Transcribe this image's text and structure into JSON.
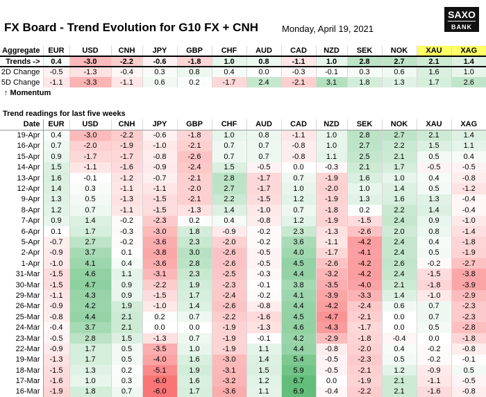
{
  "header": {
    "title": "FX Board - Trend Evolution for G10 FX + CNH",
    "date": "Monday, April 19, 2021",
    "logo": [
      "SAXO",
      "BANK"
    ]
  },
  "summary": {
    "corner": "Aggregate",
    "columns": [
      "EUR",
      "USD",
      "CNH",
      "JPY",
      "GBP",
      "CHF",
      "AUD",
      "CAD",
      "NZD",
      "SEK",
      "NOK",
      "XAU",
      "XAG"
    ],
    "rows": [
      {
        "label": "Trends ->",
        "cells": [
          "0.4",
          "-3.0",
          "-2.2",
          "-0.6",
          "-1.8",
          "1.0",
          "0.8",
          "-1.1",
          "1.0",
          "2.8",
          "2.7",
          "2.1",
          "1.4"
        ]
      },
      {
        "label": "2D Change",
        "cells": [
          "-0.5",
          "-1.3",
          "-0.4",
          "0.3",
          "0.8",
          "0.4",
          "0.0",
          "-0.3",
          "-0.1",
          "0.3",
          "0.6",
          "1.6",
          "1.0"
        ]
      },
      {
        "label": "5D Change",
        "cells": [
          "-1.1",
          "-3.3",
          "-1.1",
          "0.6",
          "0.2",
          "-1.7",
          "2.4",
          "-2.1",
          "3.1",
          "1.8",
          "1.3",
          "1.7",
          "2.6"
        ]
      }
    ],
    "note": "↑ Momentum"
  },
  "readings": {
    "title": "Trend readings for last five weeks",
    "corner": "Date",
    "columns": [
      "EUR",
      "USD",
      "CNH",
      "JPY",
      "GBP",
      "CHF",
      "AUD",
      "CAD",
      "NZD",
      "SEK",
      "NOK",
      "XAU",
      "XAG"
    ],
    "rows": [
      {
        "label": "19-Apr",
        "cells": [
          "0.4",
          "-3.0",
          "-2.2",
          "-0.6",
          "-1.8",
          "1.0",
          "0.8",
          "-1.1",
          "1.0",
          "2.8",
          "2.7",
          "2.1",
          "1.4"
        ]
      },
      {
        "label": "16-Apr",
        "cells": [
          "0.7",
          "-2.0",
          "-1.9",
          "-1.0",
          "-2.1",
          "0.7",
          "0.7",
          "-0.8",
          "1.0",
          "2.7",
          "2.2",
          "1.5",
          "1.1"
        ]
      },
      {
        "label": "15-Apr",
        "cells": [
          "0.9",
          "-1.7",
          "-1.7",
          "-0.8",
          "-2.6",
          "0.7",
          "0.7",
          "-0.8",
          "1.1",
          "2.5",
          "2.1",
          "0.5",
          "0.4"
        ]
      },
      {
        "label": "14-Apr",
        "cells": [
          "1.5",
          "-1.1",
          "-1.6",
          "-0.9",
          "-2.4",
          "1.5",
          "-0.5",
          "0.0",
          "-0.3",
          "2.1",
          "1.7",
          "-0.5",
          "-0.5"
        ]
      },
      {
        "label": "13-Apr",
        "cells": [
          "1.6",
          "-0.1",
          "-1.2",
          "-0.7",
          "-2.1",
          "2.8",
          "-1.7",
          "0.7",
          "-1.9",
          "1.6",
          "1.0",
          "0.4",
          "-0.8"
        ]
      },
      {
        "label": "12-Apr",
        "cells": [
          "1.4",
          "0.3",
          "-1.1",
          "-1.1",
          "-2.0",
          "2.7",
          "-1.7",
          "1.0",
          "-2.0",
          "1.0",
          "1.4",
          "0.5",
          "-1.2"
        ]
      },
      {
        "label": "9-Apr",
        "cells": [
          "1.3",
          "0.5",
          "-1.3",
          "-1.5",
          "-2.1",
          "2.2",
          "-1.5",
          "1.2",
          "-1.9",
          "1.3",
          "1.6",
          "1.3",
          "-0.4"
        ]
      },
      {
        "label": "8-Apr",
        "cells": [
          "1.2",
          "0.7",
          "-1.1",
          "-1.5",
          "-1.3",
          "1.4",
          "-1.0",
          "0.7",
          "-1.8",
          "0.2",
          "2.2",
          "1.4",
          "-0.4"
        ]
      },
      {
        "label": "7-Apr",
        "cells": [
          "0.9",
          "1.4",
          "-0.2",
          "-2.3",
          "0.2",
          "0.4",
          "-0.8",
          "1.2",
          "-1.9",
          "-1.5",
          "2.4",
          "0.9",
          "-1.0"
        ]
      },
      {
        "label": "6-Apr",
        "cells": [
          "0.1",
          "1.7",
          "-0.3",
          "-3.0",
          "1.8",
          "-0.9",
          "-0.2",
          "2.3",
          "-1.3",
          "-2.6",
          "2.0",
          "0.8",
          "-1.4"
        ]
      },
      {
        "label": "5-Apr",
        "cells": [
          "-0.7",
          "2.7",
          "-0.2",
          "-3.6",
          "2.3",
          "-2.0",
          "-0.2",
          "3.6",
          "-1.1",
          "-4.2",
          "2.4",
          "0.4",
          "-1.8"
        ]
      },
      {
        "label": "2-Apr",
        "cells": [
          "-0.9",
          "3.7",
          "0.1",
          "-3.8",
          "3.0",
          "-2.6",
          "-0.5",
          "4.0",
          "-1.7",
          "-4.1",
          "2.4",
          "0.5",
          "-1.9"
        ]
      },
      {
        "label": "1-Apr",
        "cells": [
          "-1.0",
          "4.1",
          "0.4",
          "-3.6",
          "2.8",
          "-2.6",
          "-0.5",
          "4.5",
          "-2.6",
          "-4.2",
          "2.6",
          "-0.2",
          "-2.7"
        ]
      },
      {
        "label": "31-Mar",
        "cells": [
          "-1.5",
          "4.6",
          "1.1",
          "-3.1",
          "2.3",
          "-2.5",
          "-0.3",
          "4.4",
          "-3.2",
          "-4.2",
          "2.4",
          "-1.5",
          "-3.8"
        ]
      },
      {
        "label": "30-Mar",
        "cells": [
          "-1.5",
          "4.7",
          "0.9",
          "-2.2",
          "1.9",
          "-2.3",
          "-0.1",
          "3.8",
          "-3.5",
          "-4.0",
          "2.1",
          "-1.8",
          "-3.9"
        ]
      },
      {
        "label": "29-Mar",
        "cells": [
          "-1.1",
          "4.3",
          "0.9",
          "-1.5",
          "1.7",
          "-2.4",
          "-0.2",
          "4.1",
          "-3.9",
          "-3.3",
          "1.4",
          "-1.0",
          "-2.9"
        ]
      },
      {
        "label": "26-Mar",
        "cells": [
          "-0.9",
          "4.2",
          "1.9",
          "-1.0",
          "1.4",
          "-2.6",
          "-0.8",
          "4.4",
          "-4.2",
          "-2.4",
          "0.6",
          "0.7",
          "-2.3"
        ]
      },
      {
        "label": "25-Mar",
        "cells": [
          "-0.8",
          "4.4",
          "2.1",
          "0.2",
          "0.7",
          "-2.2",
          "-1.6",
          "4.5",
          "-4.7",
          "-2.1",
          "0.0",
          "0.7",
          "-2.3"
        ]
      },
      {
        "label": "24-Mar",
        "cells": [
          "-0.4",
          "3.7",
          "2.1",
          "0.0",
          "0.0",
          "-1.9",
          "-1.3",
          "4.6",
          "-4.3",
          "-1.7",
          "0.0",
          "0.5",
          "-2.8"
        ]
      },
      {
        "label": "23-Mar",
        "cells": [
          "-0.5",
          "2.8",
          "1.5",
          "-1.3",
          "0.7",
          "-1.9",
          "-0.1",
          "4.2",
          "-2.9",
          "-1.8",
          "-0.4",
          "0.0",
          "-1.8"
        ]
      },
      {
        "label": "22-Mar",
        "cells": [
          "-0.9",
          "1.7",
          "0.5",
          "-3.5",
          "1.0",
          "-1.9",
          "1.1",
          "4.4",
          "-0.8",
          "-2.0",
          "0.4",
          "-0.2",
          "-0.8"
        ]
      },
      {
        "label": "19-Mar",
        "cells": [
          "-1.3",
          "1.7",
          "0.5",
          "-4.0",
          "1.6",
          "-3.0",
          "1.4",
          "5.4",
          "-0.5",
          "-2.3",
          "0.5",
          "-0.2",
          "-0.1"
        ]
      },
      {
        "label": "18-Mar",
        "cells": [
          "-1.5",
          "1.3",
          "0.2",
          "-5.1",
          "1.9",
          "-3.1",
          "1.5",
          "5.9",
          "-0.5",
          "-2.1",
          "1.2",
          "-0.9",
          "0.5"
        ]
      },
      {
        "label": "17-Mar",
        "cells": [
          "-1.6",
          "1.0",
          "0.3",
          "-6.0",
          "1.6",
          "-3.2",
          "1.2",
          "6.7",
          "0.0",
          "-1.9",
          "2.1",
          "-1.1",
          "-0.5"
        ]
      },
      {
        "label": "16-Mar",
        "cells": [
          "-1.9",
          "1.8",
          "0.7",
          "-6.0",
          "1.7",
          "-3.6",
          "1.1",
          "6.9",
          "-0.4",
          "-2.2",
          "2.1",
          "-1.6",
          "-0.8"
        ]
      }
    ]
  }
}
